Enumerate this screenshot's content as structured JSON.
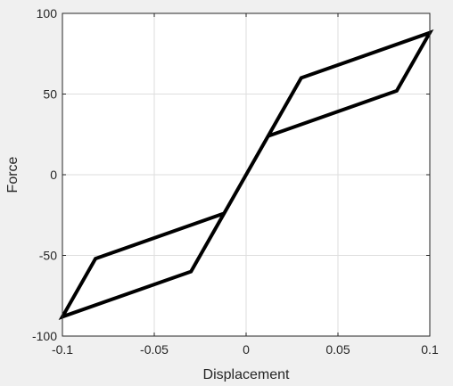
{
  "chart_data": {
    "type": "line",
    "title": "",
    "xlabel": "Displacement",
    "ylabel": "Force",
    "xlim": [
      -0.1,
      0.1
    ],
    "ylim": [
      -100,
      100
    ],
    "x_ticks": [
      -0.1,
      -0.05,
      0,
      0.05,
      0.1
    ],
    "x_tick_labels": [
      "-0.1",
      "-0.05",
      "0",
      "0.05",
      "0.1"
    ],
    "y_ticks": [
      -100,
      -50,
      0,
      50,
      100
    ],
    "y_tick_labels": [
      "-100",
      "-50",
      "0",
      "50",
      "100"
    ],
    "grid": true,
    "box": true,
    "series": [
      {
        "color": "#000000",
        "x": [
          0.0,
          0.03,
          0.1,
          0.082,
          0.012,
          0.0,
          -0.012,
          -0.082,
          -0.1,
          -0.03,
          0.0
        ],
        "y": [
          0.0,
          60,
          88,
          52,
          24,
          0.0,
          -24,
          -52,
          -88,
          -60,
          0.0
        ]
      }
    ]
  }
}
